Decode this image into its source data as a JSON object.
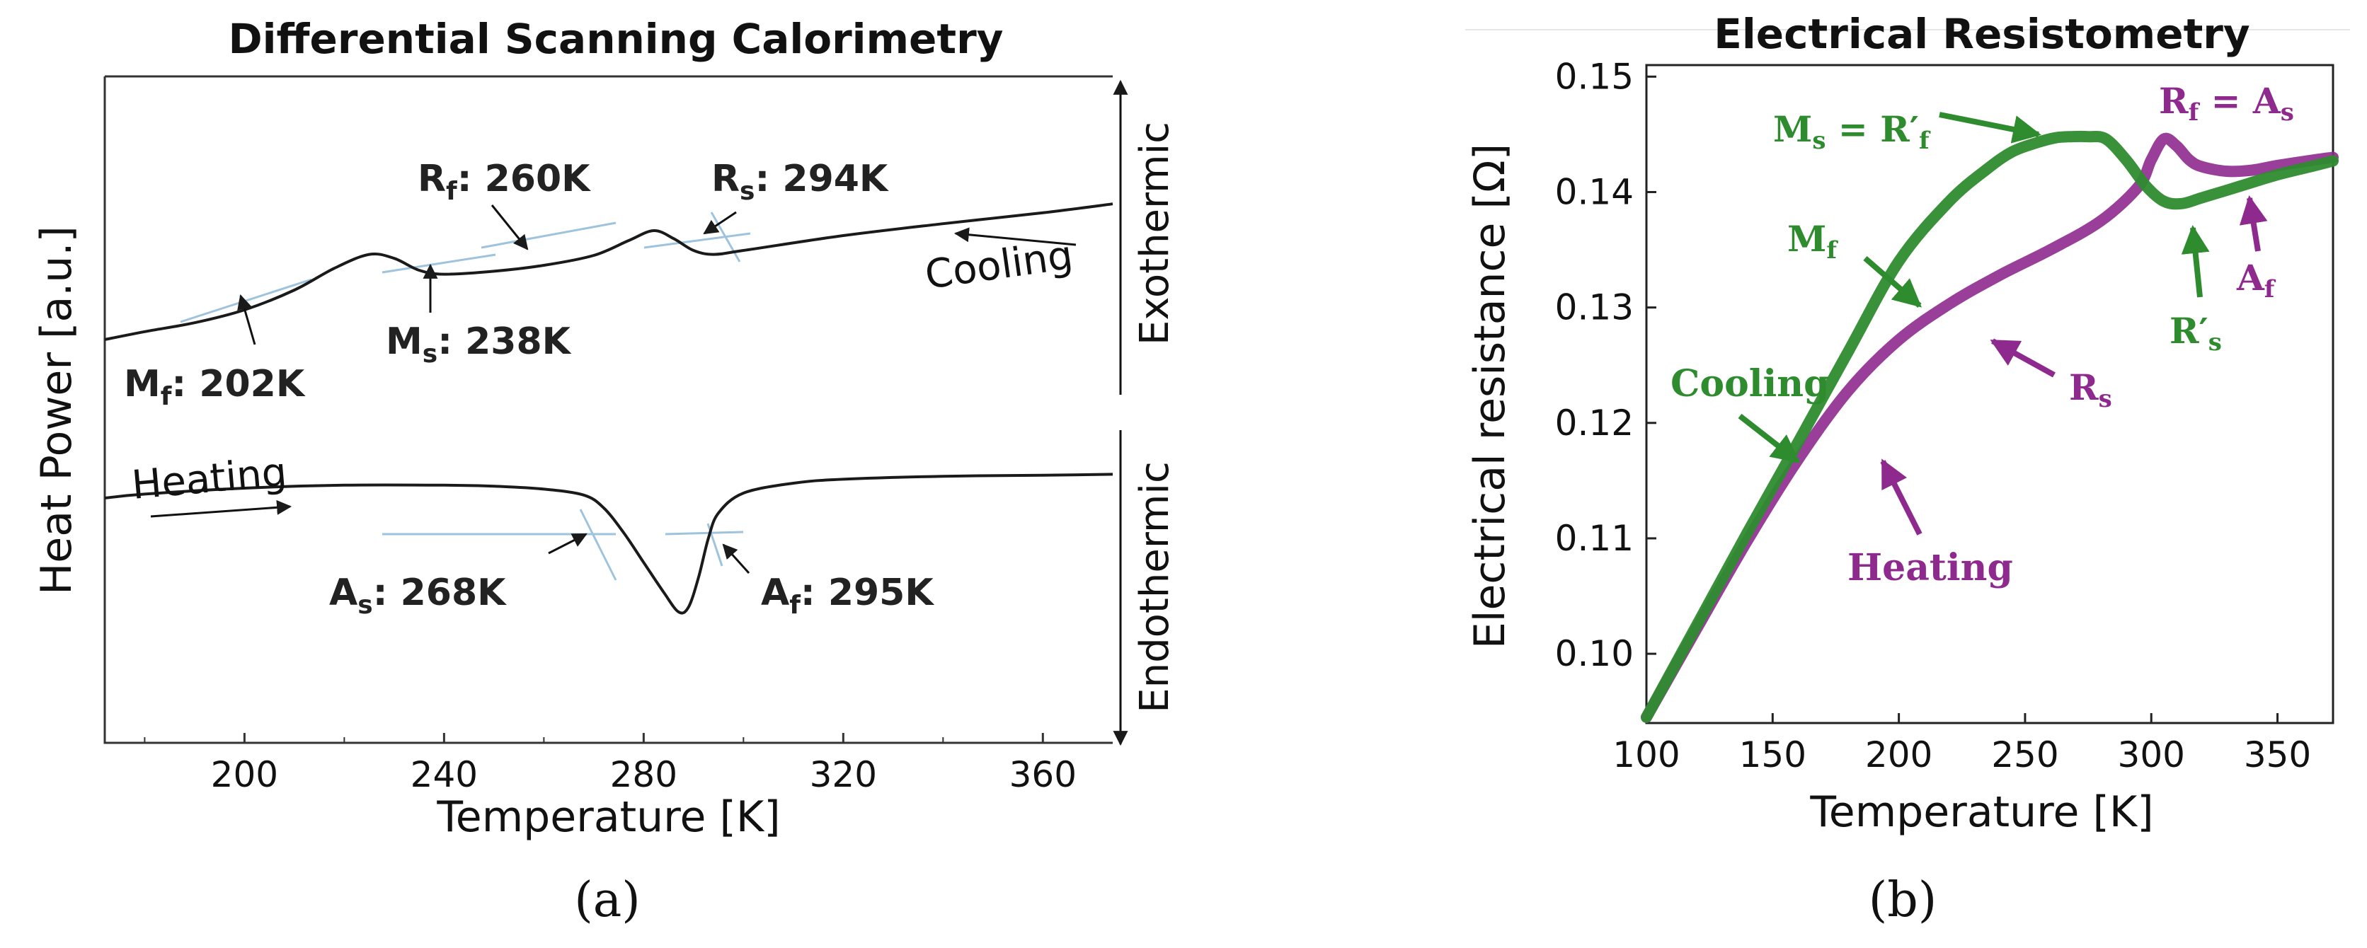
{
  "figure": {
    "panel_a_label": "(a)",
    "panel_b_label": "(b)"
  },
  "chart_data": [
    {
      "type": "line",
      "title": "Differential Scanning Calorimetry",
      "xlabel": "Temperature [K]",
      "ylabel": "Heat Power [a.u.]",
      "xlim": [
        172,
        374
      ],
      "xticks": [
        200,
        240,
        280,
        320,
        360
      ],
      "y_ticks_shown": false,
      "right_side_labels": {
        "top": "Exothermic",
        "bottom": "Endothermic"
      },
      "series": [
        {
          "name": "Cooling",
          "x": [
            172,
            180,
            190,
            200,
            210,
            218,
            225,
            230,
            235,
            240,
            250,
            260,
            270,
            277,
            282,
            286,
            290,
            294,
            300,
            320,
            340,
            360,
            374
          ],
          "y": [
            2.0,
            2.08,
            2.17,
            2.3,
            2.5,
            2.72,
            2.86,
            2.82,
            2.7,
            2.66,
            2.69,
            2.75,
            2.85,
            3.0,
            3.1,
            3.02,
            2.9,
            2.86,
            2.9,
            3.05,
            3.17,
            3.28,
            3.37
          ],
          "color": "#1a1a1a"
        },
        {
          "name": "Heating",
          "x": [
            172,
            180,
            200,
            220,
            240,
            250,
            260,
            268,
            272,
            276,
            280,
            284,
            287,
            289,
            291,
            293,
            295,
            300,
            310,
            320,
            340,
            360,
            374
          ],
          "y": [
            0.4,
            0.44,
            0.5,
            0.53,
            0.53,
            0.52,
            0.49,
            0.43,
            0.3,
            0.05,
            -0.25,
            -0.55,
            -0.75,
            -0.7,
            -0.4,
            0.0,
            0.25,
            0.45,
            0.55,
            0.59,
            0.62,
            0.63,
            0.64
          ],
          "color": "#1a1a1a"
        }
      ],
      "annotations": [
        "Cooling",
        "Heating",
        "Mf: 202K",
        "Ms: 238K",
        "Rf: 260K",
        "Rs: 294K",
        "As: 268K",
        "Af: 295K"
      ]
    },
    {
      "type": "line",
      "title": "Electrical Resistometry",
      "xlabel": "Temperature [K]",
      "ylabel": "Electrical resistance [Ω]",
      "xlim": [
        100,
        372
      ],
      "ylim": [
        0.094,
        0.151
      ],
      "xticks": [
        100,
        150,
        200,
        250,
        300,
        350
      ],
      "yticks": [
        0.1,
        0.11,
        0.12,
        0.13,
        0.14,
        0.15
      ],
      "series": [
        {
          "name": "Cooling",
          "color": "#2e8b2e",
          "x": [
            100,
            120,
            140,
            160,
            180,
            200,
            220,
            235,
            245,
            255,
            262,
            268,
            275,
            282,
            290,
            298,
            305,
            312,
            320,
            335,
            350,
            365,
            372
          ],
          "y": [
            0.0945,
            0.1025,
            0.1105,
            0.1183,
            0.1262,
            0.134,
            0.1392,
            0.142,
            0.1435,
            0.1443,
            0.1447,
            0.1448,
            0.1448,
            0.1446,
            0.1428,
            0.1405,
            0.1392,
            0.139,
            0.1395,
            0.1405,
            0.1415,
            0.1423,
            0.1427
          ]
        },
        {
          "name": "Heating",
          "color": "#8e2a8e",
          "x": [
            100,
            120,
            140,
            160,
            180,
            200,
            220,
            240,
            260,
            280,
            295,
            300,
            305,
            310,
            315,
            320,
            330,
            340,
            350,
            365,
            372
          ],
          "y": [
            0.0945,
            0.1022,
            0.1098,
            0.1168,
            0.1228,
            0.1272,
            0.1303,
            0.1328,
            0.135,
            0.1375,
            0.1405,
            0.1428,
            0.1446,
            0.144,
            0.1428,
            0.1422,
            0.1418,
            0.1419,
            0.1423,
            0.1428,
            0.143
          ]
        }
      ],
      "annotations": [
        "Ms = R′f",
        "Rf = As",
        "Mf",
        "Af",
        "R′s",
        "Rs",
        "Cooling",
        "Heating"
      ]
    }
  ]
}
